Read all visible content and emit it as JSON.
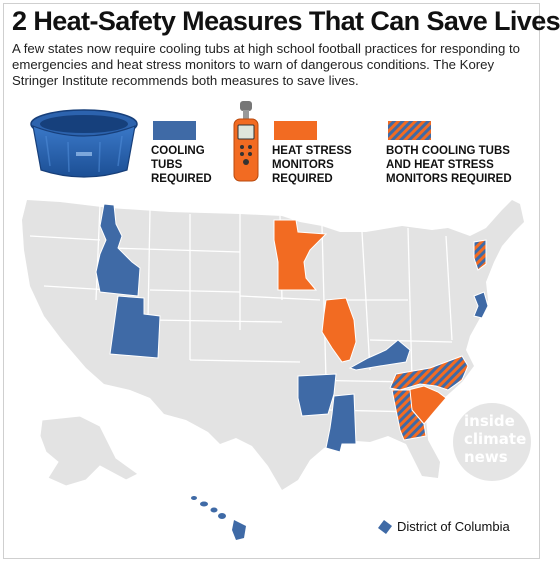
{
  "title": "2 Heat-Safety Measures That Can Save Lives",
  "subtitle": "A few states now require cooling tubs at high school football practices for responding to emergencies and heat stress monitors to warn of dangerous conditions. The Korey Stringer Institute recommends both measures to save lives.",
  "legend": [
    {
      "key": "cooling",
      "label": "COOLING\nTUBS\nREQUIRED",
      "color": "#3f6aa6",
      "pattern": "solid"
    },
    {
      "key": "monitors",
      "label": "HEAT STRESS\nMONITORS\nREQUIRED",
      "color": "#f26b22",
      "pattern": "solid"
    },
    {
      "key": "both",
      "label": "BOTH COOLING TUBS\nAND HEAT STRESS\nMONITORS REQUIRED",
      "color": "#f26b22",
      "color2": "#3f6aa6",
      "pattern": "diagonal-stripes"
    }
  ],
  "colors": {
    "cooling": "#3f6aa6",
    "monitors": "#f26b22",
    "both_a": "#f26b22",
    "both_b": "#3f6aa6",
    "land": "#e3e3e3",
    "border": "#ffffff"
  },
  "states": {
    "cooling_tubs": [
      "Idaho",
      "Utah",
      "Arkansas",
      "Mississippi",
      "Kentucky",
      "New Jersey",
      "Hawaii",
      "District of Columbia"
    ],
    "heat_stress_monitors": [
      "Minnesota",
      "Illinois",
      "South Carolina"
    ],
    "both": [
      "North Carolina",
      "Georgia",
      "Vermont"
    ]
  },
  "dc_label": "District of Columbia",
  "watermark": {
    "line1": "inside",
    "line2": "climate",
    "line3": "news"
  }
}
